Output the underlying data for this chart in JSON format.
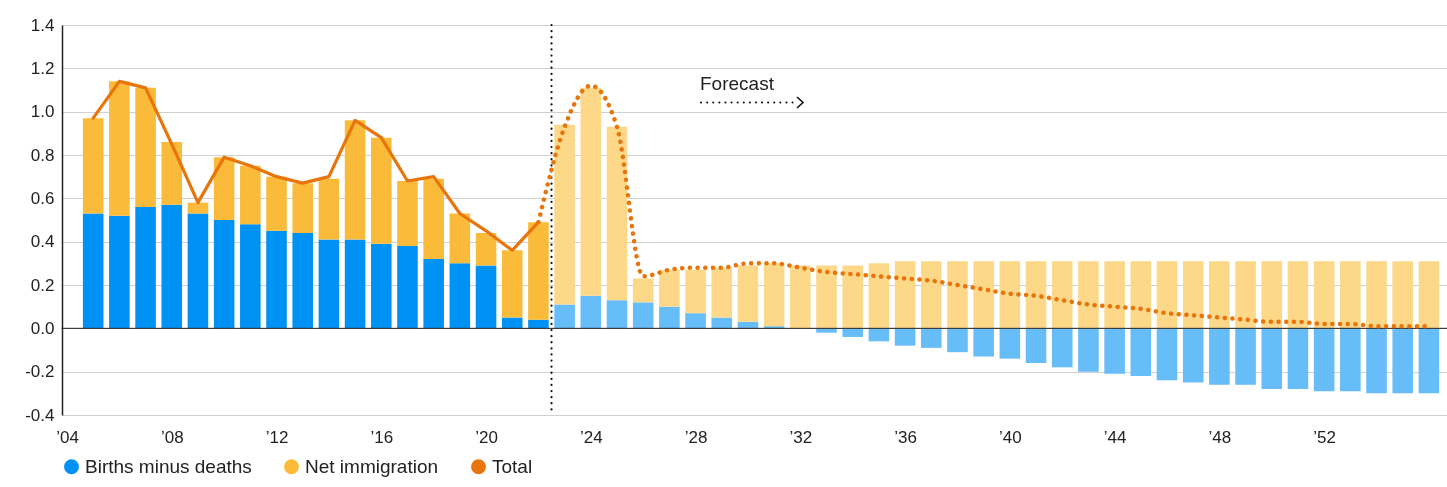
{
  "chart_data": {
    "type": "bar",
    "stacked": true,
    "x": [
      2005,
      2006,
      2007,
      2008,
      2009,
      2010,
      2011,
      2012,
      2013,
      2014,
      2015,
      2016,
      2017,
      2018,
      2019,
      2020,
      2021,
      2022,
      2023,
      2024,
      2025,
      2026,
      2027,
      2028,
      2029,
      2030,
      2031,
      2032,
      2033,
      2034,
      2035,
      2036,
      2037,
      2038,
      2039,
      2040,
      2041,
      2042,
      2043,
      2044,
      2045,
      2046,
      2047,
      2048,
      2049,
      2050,
      2051,
      2052,
      2053,
      2054,
      2055,
      2056
    ],
    "series": [
      {
        "name": "Births minus deaths",
        "color": "#0091f5",
        "values": [
          0.53,
          0.52,
          0.56,
          0.57,
          0.53,
          0.5,
          0.48,
          0.45,
          0.44,
          0.41,
          0.41,
          0.39,
          0.38,
          0.32,
          0.3,
          0.29,
          0.05,
          0.04,
          null,
          null,
          null,
          null,
          null,
          null,
          null,
          null,
          null,
          null,
          null,
          null,
          null,
          null,
          null,
          null,
          null,
          null,
          null,
          null,
          null,
          null,
          null,
          null,
          null,
          null,
          null,
          null,
          null,
          null,
          null,
          null,
          null,
          null
        ]
      },
      {
        "name": "Net immigration",
        "color": "#fbbb3a",
        "values": [
          0.44,
          0.62,
          0.55,
          0.29,
          0.05,
          0.29,
          0.27,
          0.25,
          0.23,
          0.28,
          0.55,
          0.49,
          0.3,
          0.37,
          0.23,
          0.15,
          0.31,
          0.45,
          null,
          null,
          null,
          null,
          null,
          null,
          null,
          null,
          null,
          null,
          null,
          null,
          null,
          null,
          null,
          null,
          null,
          null,
          null,
          null,
          null,
          null,
          null,
          null,
          null,
          null,
          null,
          null,
          null,
          null,
          null,
          null,
          null,
          null
        ]
      },
      {
        "color": "#66bdf8",
        "values": [
          null,
          null,
          null,
          null,
          null,
          null,
          null,
          null,
          null,
          null,
          null,
          null,
          null,
          null,
          null,
          null,
          null,
          null,
          0.11,
          0.15,
          0.13,
          0.12,
          0.1,
          0.07,
          0.05,
          0.03,
          0.01,
          0,
          -0.02,
          -0.04,
          -0.06,
          -0.08,
          -0.09,
          -0.11,
          -0.13,
          -0.14,
          -0.16,
          -0.18,
          -0.2,
          -0.21,
          -0.22,
          -0.24,
          -0.25,
          -0.26,
          -0.26,
          -0.28,
          -0.28,
          -0.29,
          -0.29,
          -0.3,
          -0.3,
          -0.3
        ]
      },
      {
        "color": "#fdd889",
        "values": [
          null,
          null,
          null,
          null,
          null,
          null,
          null,
          null,
          null,
          null,
          null,
          null,
          null,
          null,
          null,
          null,
          null,
          null,
          0.83,
          0.96,
          0.8,
          0.11,
          0.17,
          0.2,
          0.23,
          0.26,
          0.29,
          0.29,
          0.29,
          0.29,
          0.3,
          0.31,
          0.31,
          0.31,
          0.31,
          0.31,
          0.31,
          0.31,
          0.31,
          0.31,
          0.31,
          0.31,
          0.31,
          0.31,
          0.31,
          0.31,
          0.31,
          0.31,
          0.31,
          0.31,
          0.31,
          0.31
        ]
      },
      {
        "name": "Total",
        "type": "line",
        "color": "#e8740c",
        "line_style": "solid",
        "x": [
          2005,
          2006,
          2007,
          2008,
          2009,
          2010,
          2011,
          2012,
          2013,
          2014,
          2015,
          2016,
          2017,
          2018,
          2019,
          2020,
          2021,
          2022
        ],
        "values": [
          0.97,
          1.14,
          1.11,
          0.85,
          0.58,
          0.79,
          0.75,
          0.7,
          0.67,
          0.7,
          0.96,
          0.88,
          0.68,
          0.7,
          0.53,
          0.45,
          0.36,
          0.49
        ]
      },
      {
        "type": "line",
        "color": "#e8740c",
        "line_style": "dotted",
        "x": [
          2022,
          2023,
          2024,
          2025,
          2026,
          2027,
          2028,
          2029,
          2030,
          2031,
          2032,
          2033,
          2034,
          2035,
          2036,
          2037,
          2038,
          2039,
          2040,
          2041,
          2042,
          2043,
          2044,
          2045,
          2046,
          2047,
          2048,
          2049,
          2050,
          2051,
          2052,
          2053,
          2054,
          2055,
          2056
        ],
        "values": [
          0.49,
          0.93,
          1.12,
          0.93,
          0.24,
          0.27,
          0.28,
          0.28,
          0.3,
          0.3,
          0.28,
          0.26,
          0.25,
          0.24,
          0.23,
          0.22,
          0.2,
          0.18,
          0.16,
          0.15,
          0.13,
          0.11,
          0.1,
          0.09,
          0.07,
          0.06,
          0.05,
          0.04,
          0.03,
          0.03,
          0.02,
          0.02,
          0.01,
          0.01,
          0.01
        ]
      }
    ],
    "xlim": [
      2004,
      2056.5
    ],
    "xticks": [
      {
        "value": 2004,
        "label": "’04"
      },
      {
        "value": 2008,
        "label": "’08"
      },
      {
        "value": 2012,
        "label": "’12"
      },
      {
        "value": 2016,
        "label": "’16"
      },
      {
        "value": 2020,
        "label": "’20"
      },
      {
        "value": 2024,
        "label": "’24"
      },
      {
        "value": 2028,
        "label": "’28"
      },
      {
        "value": 2032,
        "label": "’32"
      },
      {
        "value": 2036,
        "label": "’36"
      },
      {
        "value": 2040,
        "label": "’40"
      },
      {
        "value": 2044,
        "label": "’44"
      },
      {
        "value": 2048,
        "label": "’48"
      },
      {
        "value": 2052,
        "label": "’52"
      }
    ],
    "ylim": [
      -0.4,
      1.4
    ],
    "yticks": [
      -0.4,
      -0.2,
      {
        "value": 0,
        "label": "0.0"
      },
      0.2,
      0.4,
      0.6,
      0.8,
      {
        "value": 1,
        "label": "1.0"
      },
      1.2,
      1.4
    ],
    "ref_lines": [
      {
        "axis": "y",
        "value": 0,
        "color": "#222222",
        "line_style": "solid"
      },
      {
        "axis": "x",
        "value": 2022.5,
        "color": "#111111",
        "line_style": "dotted"
      }
    ],
    "annotations": [
      "Forecast"
    ],
    "grid": "y",
    "legend": "bottom"
  }
}
